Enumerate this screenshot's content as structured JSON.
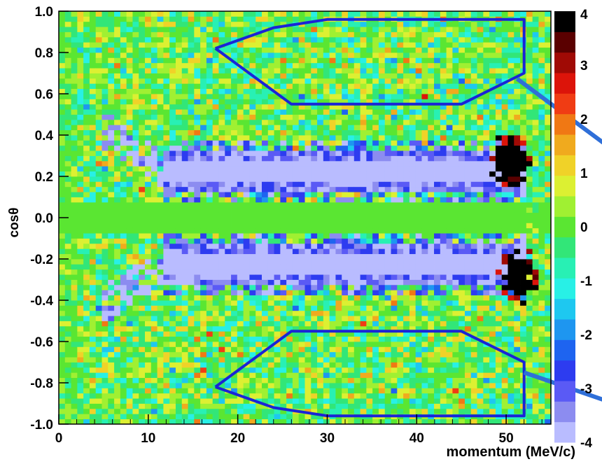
{
  "chart_data": {
    "type": "heatmap",
    "title": "",
    "xlabel": "momentum (MeV/c)",
    "ylabel": "cosθ",
    "xlim": [
      0,
      55
    ],
    "ylim": [
      -1.0,
      1.0
    ],
    "x_ticks": [
      "0",
      "10",
      "20",
      "30",
      "40",
      "50"
    ],
    "x_tick_values": [
      0,
      10,
      20,
      30,
      40,
      50
    ],
    "y_ticks": [
      "1.0",
      "0.8",
      "0.6",
      "0.4",
      "0.2",
      "0.0",
      "-0.2",
      "-0.4",
      "-0.6",
      "-0.8",
      "-1.0"
    ],
    "y_tick_values": [
      1.0,
      0.8,
      0.6,
      0.4,
      0.2,
      0.0,
      -0.2,
      -0.4,
      -0.6,
      -0.8,
      -1.0
    ],
    "bins": {
      "x": 80,
      "y": 80
    },
    "zlim": [
      -4,
      4
    ],
    "colorbar_ticks": [
      "4",
      "3",
      "2",
      "1",
      "0",
      "-1",
      "-2",
      "-3",
      "-4"
    ],
    "colorbar_tick_values": [
      4,
      3,
      2,
      1,
      0,
      -1,
      -2,
      -3,
      -4
    ],
    "palette": [
      "#b9bcff",
      "#8c8cf0",
      "#5a5af5",
      "#2d3cf0",
      "#1e64f0",
      "#1e96f0",
      "#1ec8f0",
      "#28f0e6",
      "#28f0b4",
      "#32e678",
      "#5ae632",
      "#a0f032",
      "#dcf032",
      "#f0d228",
      "#f0aa1e",
      "#f07814",
      "#f03c14",
      "#dc140a",
      "#a00a05",
      "#5a0000",
      "#000000"
    ],
    "features": [
      {
        "name": "band",
        "y": 0.225,
        "x_from": 12,
        "x_to": 52,
        "z": -4.5
      },
      {
        "name": "band",
        "y": -0.225,
        "x_from": 12,
        "x_to": 52,
        "z": -4.5
      },
      {
        "name": "hotspot",
        "x": 50.5,
        "y": 0.28,
        "z": 4.5
      },
      {
        "name": "hotspot",
        "x": 51.5,
        "y": -0.28,
        "z": 4.5
      },
      {
        "name": "central-strip",
        "y_from": -0.07,
        "y_to": 0.07,
        "z": 0
      }
    ],
    "overlay_regions": [
      {
        "name": "upper-selection",
        "points": [
          [
            17.5,
            0.82
          ],
          [
            24,
            0.92
          ],
          [
            30,
            0.96
          ],
          [
            52,
            0.96
          ],
          [
            52,
            0.7
          ],
          [
            45,
            0.55
          ],
          [
            26,
            0.55
          ],
          [
            17.5,
            0.82
          ]
        ]
      },
      {
        "name": "lower-selection",
        "points": [
          [
            17.5,
            -0.82
          ],
          [
            24,
            -0.92
          ],
          [
            30,
            -0.96
          ],
          [
            52,
            -0.96
          ],
          [
            52,
            -0.7
          ],
          [
            45,
            -0.55
          ],
          [
            26,
            -0.55
          ],
          [
            17.5,
            -0.82
          ]
        ]
      }
    ],
    "overlay_color": "#1a24d6"
  }
}
